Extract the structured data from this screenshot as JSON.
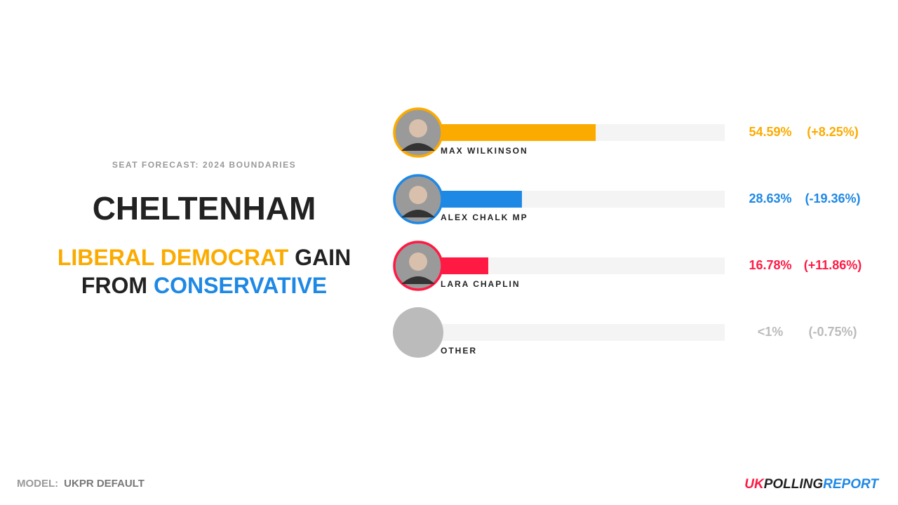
{
  "header": {
    "kicker": "SEAT FORECAST: 2024 BOUNDARIES",
    "seat": "CHELTENHAM",
    "headline": {
      "winner": "LIBERAL DEMOCRAT",
      "gain": "GAIN",
      "from": "FROM",
      "loser": "CONSERVATIVE"
    }
  },
  "chart_data": {
    "type": "bar",
    "categories": [
      "MAX WILKINSON",
      "ALEX CHALK MP",
      "LARA CHAPLIN",
      "OTHER"
    ],
    "values": [
      54.59,
      28.63,
      16.78,
      0.5
    ],
    "value_labels": [
      "54.59%",
      "28.63%",
      "16.78%",
      "<1%"
    ],
    "changes": [
      8.25,
      -19.36,
      11.86,
      -0.75
    ],
    "change_labels": [
      "(+8.25%)",
      "(-19.36%)",
      "(+11.86%)",
      "(-0.75%)"
    ],
    "colors": [
      "#fbab00",
      "#1e88e5",
      "#ff1a44",
      "#bbbbbb"
    ],
    "xlim": [
      0,
      100
    ]
  },
  "footer": {
    "model_label": "MODEL:",
    "model": "UKPR DEFAULT",
    "logo": {
      "uk": "UK",
      "polling": "POLLING",
      "report": "REPORT"
    }
  }
}
